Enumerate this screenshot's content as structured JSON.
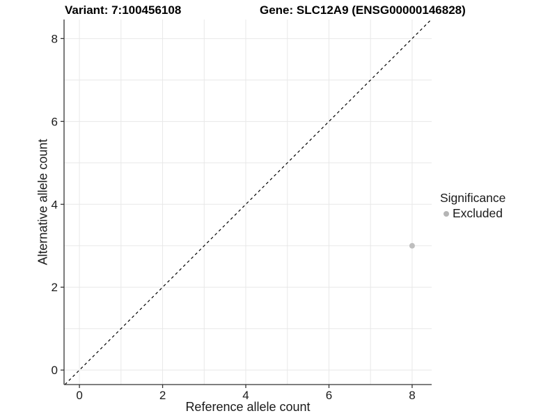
{
  "titles": {
    "variant": "Variant: 7:100456108",
    "gene": "Gene: SLC12A9 (ENSG00000146828)"
  },
  "legend": {
    "title": "Significance",
    "position": "right",
    "items": [
      {
        "label": "Excluded",
        "color": "#b5b5b5"
      }
    ]
  },
  "chart_data": {
    "type": "scatter",
    "title": "",
    "xlabel": "Reference allele count",
    "ylabel": "Alternative allele count",
    "xlim": [
      -0.37,
      8.47
    ],
    "ylim": [
      -0.35,
      8.46
    ],
    "xticks": [
      0,
      2,
      4,
      6,
      8
    ],
    "yticks": [
      0,
      2,
      4,
      6,
      8
    ],
    "grid": {
      "on": true,
      "every": 1,
      "color": "#e8e8e8"
    },
    "series": [
      {
        "name": "Excluded",
        "color": "#bebebe",
        "marker": "circle",
        "points": [
          {
            "x": 8,
            "y": 3
          }
        ]
      }
    ],
    "reference_line": {
      "type": "identity",
      "label": "y = x",
      "style": "dashed",
      "color": "#000000"
    }
  },
  "colors": {
    "background": "#ffffff",
    "axis_line": "#333333",
    "tick_text": "#1a1a1a",
    "grid_line": "#e8e8e8",
    "point": "#bebebe",
    "dashed_line": "#000000"
  }
}
